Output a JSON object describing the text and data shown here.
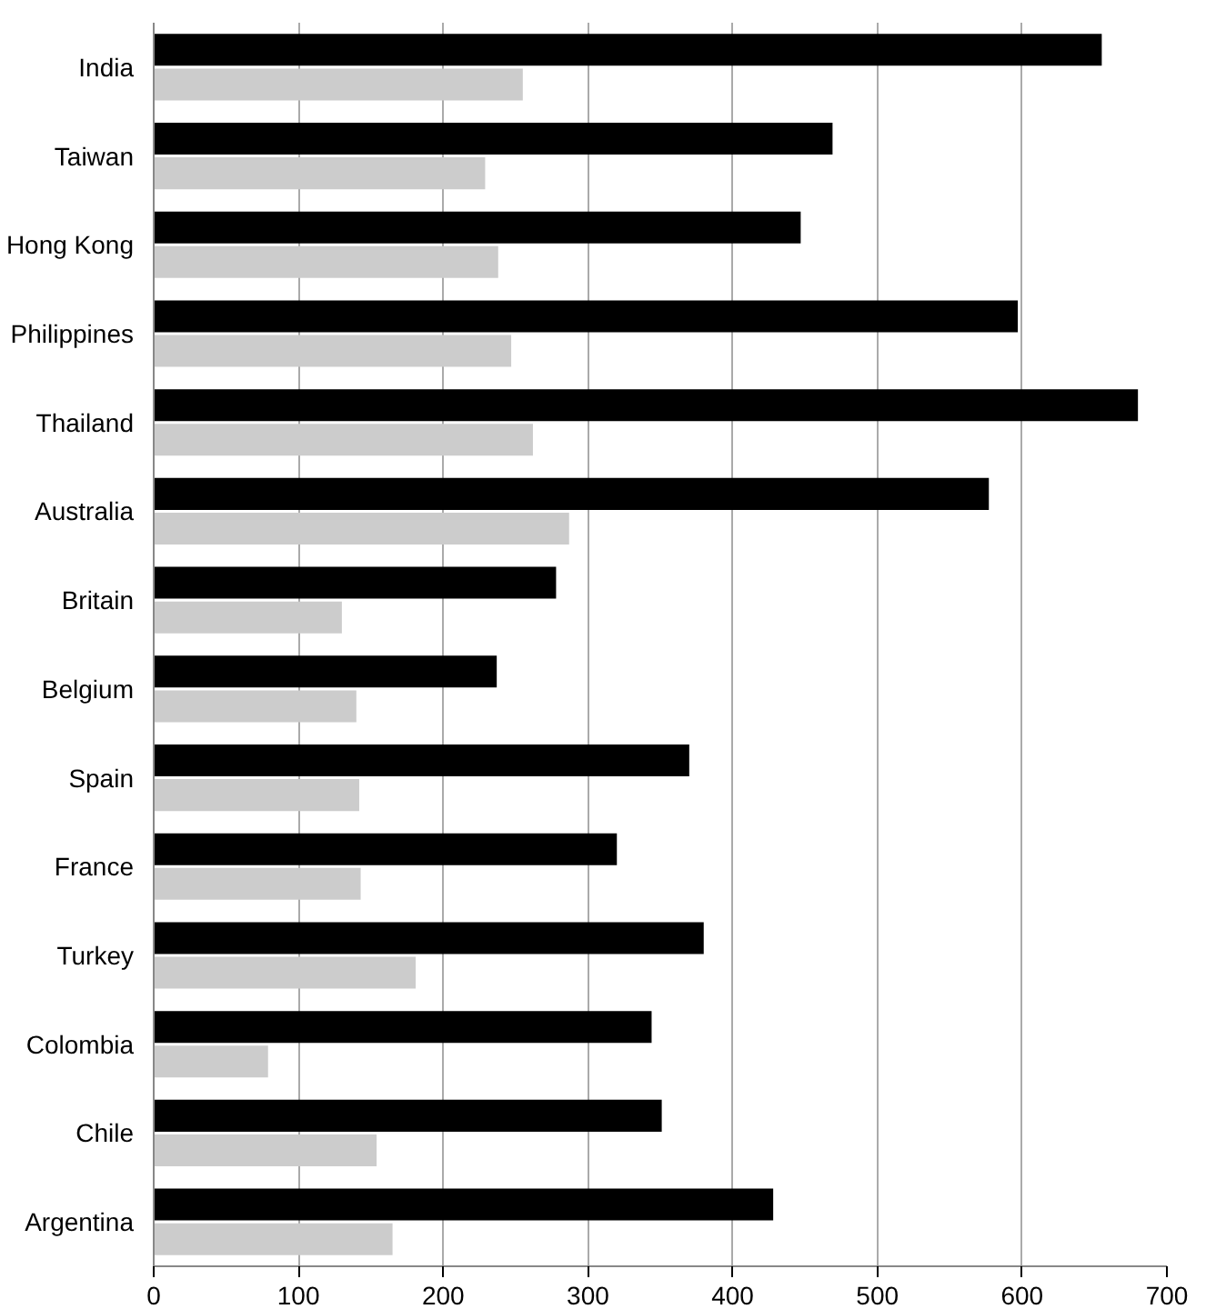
{
  "chart_data": {
    "type": "bar",
    "orientation": "horizontal",
    "categories": [
      "India",
      "Taiwan",
      "Hong Kong",
      "Philippines",
      "Thailand",
      "Australia",
      "Britain",
      "Belgium",
      "Spain",
      "France",
      "Turkey",
      "Colombia",
      "Chile",
      "Argentina"
    ],
    "series": [
      {
        "color": "#000000",
        "values": [
          655,
          469,
          447,
          597,
          680,
          577,
          278,
          237,
          370,
          320,
          380,
          344,
          351,
          428
        ]
      },
      {
        "color": "#cccccc",
        "values": [
          255,
          229,
          238,
          247,
          262,
          287,
          130,
          140,
          142,
          143,
          181,
          79,
          154,
          165
        ]
      }
    ],
    "xlim": [
      0,
      700
    ],
    "xticks": [
      0,
      100,
      200,
      300,
      400,
      500,
      600,
      700
    ],
    "grid": "x"
  }
}
